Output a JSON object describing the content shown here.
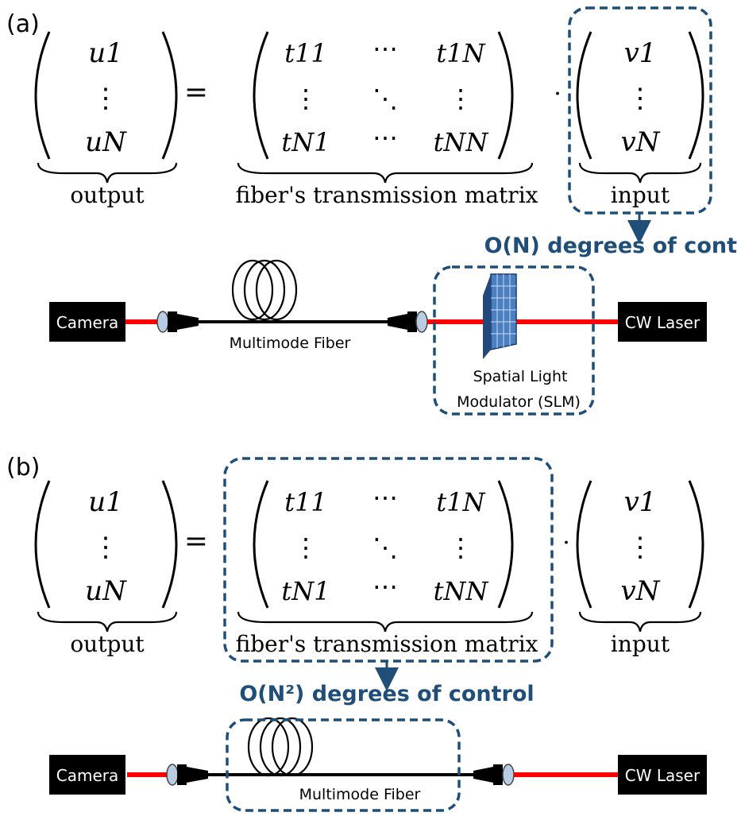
{
  "panel_a": {
    "label": "(a)",
    "output_vector": [
      "u1",
      "⋮",
      "uN"
    ],
    "equals": "=",
    "matrix": {
      "row1": [
        "t11",
        "⋯",
        "t1N"
      ],
      "row2": [
        "⋮",
        "⋱",
        "⋮"
      ],
      "row3": [
        "tN1",
        "⋯",
        "tNN"
      ]
    },
    "dot": "·",
    "input_vector": [
      "v1",
      "⋮",
      "vN"
    ],
    "under_labels": {
      "output": "output",
      "matrix": "fiber's transmission matrix",
      "input": "input"
    },
    "control_text": "O(N) degrees of cont",
    "setup": {
      "camera": "Camera",
      "fiber_label": "Multimode Fiber",
      "slm_line1": "Spatial Light",
      "slm_line2": "Modulator (SLM)",
      "laser": "CW Laser"
    }
  },
  "panel_b": {
    "label": "(b)",
    "output_vector": [
      "u1",
      "⋮",
      "uN"
    ],
    "equals": "=",
    "matrix": {
      "row1": [
        "t11",
        "⋯",
        "t1N"
      ],
      "row2": [
        "⋮",
        "⋱",
        "⋮"
      ],
      "row3": [
        "tN1",
        "⋯",
        "tNN"
      ]
    },
    "dot": "·",
    "input_vector": [
      "v1",
      "⋮",
      "vN"
    ],
    "under_labels": {
      "output": "output",
      "matrix": "fiber's transmission matrix",
      "input": "input"
    },
    "control_text": "O(N²) degrees of control",
    "setup": {
      "camera": "Camera",
      "fiber_label": "Multimode Fiber",
      "laser": "CW Laser"
    }
  },
  "colors": {
    "highlight": "#1f4e79",
    "beam": "#ff0000",
    "box_fill": "#000000",
    "slm_fill": "#4a7fc1"
  }
}
